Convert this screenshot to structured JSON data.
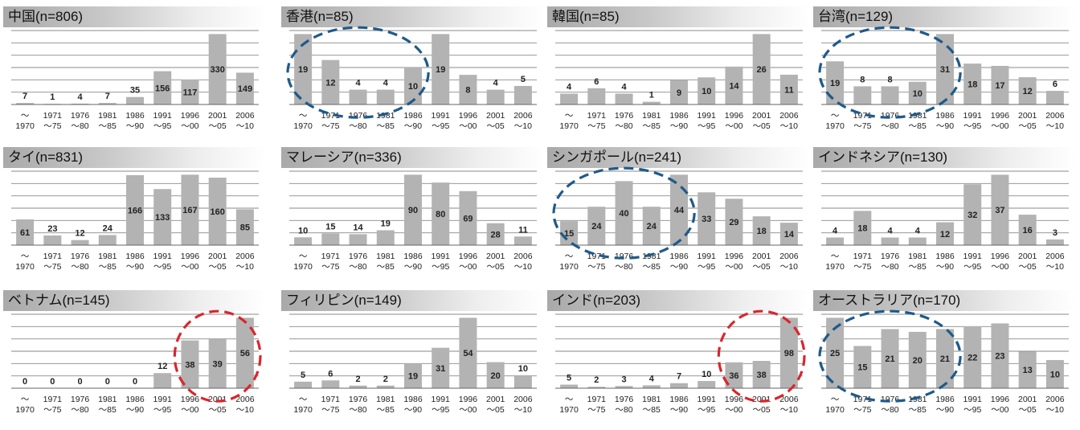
{
  "chart_data": [
    {
      "type": "bar",
      "title": "中国(n=806)",
      "categories": [
        [
          "～",
          "1970"
        ],
        [
          "1971",
          "～75"
        ],
        [
          "1976",
          "～80"
        ],
        [
          "1981",
          "～85"
        ],
        [
          "1986",
          "～90"
        ],
        [
          "1991",
          "～95"
        ],
        [
          "1996",
          "～00"
        ],
        [
          "2001",
          "～05"
        ],
        [
          "2006",
          "～10"
        ]
      ],
      "values": [
        7,
        1,
        4,
        7,
        35,
        156,
        117,
        330,
        149
      ],
      "highlight": null
    },
    {
      "type": "bar",
      "title": "香港(n=85)",
      "categories": [
        [
          "～",
          "1970"
        ],
        [
          "1971",
          "～75"
        ],
        [
          "1976",
          "～80"
        ],
        [
          "1981",
          "～85"
        ],
        [
          "1986",
          "～90"
        ],
        [
          "1991",
          "～95"
        ],
        [
          "1996",
          "～00"
        ],
        [
          "2001",
          "～05"
        ],
        [
          "2006",
          "～10"
        ]
      ],
      "values": [
        19,
        12,
        4,
        4,
        10,
        19,
        8,
        4,
        5
      ],
      "highlight": {
        "color": "#1f5a8a",
        "from": 0,
        "to": 4
      }
    },
    {
      "type": "bar",
      "title": "韓国(n=85)",
      "categories": [
        [
          "～",
          "1970"
        ],
        [
          "1971",
          "～75"
        ],
        [
          "1976",
          "～80"
        ],
        [
          "1981",
          "～85"
        ],
        [
          "1986",
          "～90"
        ],
        [
          "1991",
          "～95"
        ],
        [
          "1996",
          "～00"
        ],
        [
          "2001",
          "～05"
        ],
        [
          "2006",
          "～10"
        ]
      ],
      "values": [
        4,
        6,
        4,
        1,
        9,
        10,
        14,
        26,
        11
      ],
      "highlight": null
    },
    {
      "type": "bar",
      "title": "台湾(n=129)",
      "categories": [
        [
          "～",
          "1970"
        ],
        [
          "1971",
          "～75"
        ],
        [
          "1976",
          "～80"
        ],
        [
          "1981",
          "～85"
        ],
        [
          "1986",
          "～90"
        ],
        [
          "1991",
          "～95"
        ],
        [
          "1996",
          "～00"
        ],
        [
          "2001",
          "～05"
        ],
        [
          "2006",
          "～10"
        ]
      ],
      "values": [
        19,
        8,
        8,
        10,
        31,
        18,
        17,
        12,
        6
      ],
      "highlight": {
        "color": "#1f5a8a",
        "from": 0,
        "to": 4
      }
    },
    {
      "type": "bar",
      "title": "タイ(n=831)",
      "categories": [
        [
          "～",
          "1970"
        ],
        [
          "1971",
          "～75"
        ],
        [
          "1976",
          "～80"
        ],
        [
          "1981",
          "～85"
        ],
        [
          "1986",
          "～90"
        ],
        [
          "1991",
          "～95"
        ],
        [
          "1996",
          "～00"
        ],
        [
          "2001",
          "～05"
        ],
        [
          "2006",
          "～10"
        ]
      ],
      "values": [
        61,
        23,
        12,
        24,
        166,
        133,
        167,
        160,
        85
      ],
      "highlight": null
    },
    {
      "type": "bar",
      "title": "マレーシア(n=336)",
      "categories": [
        [
          "～",
          "1970"
        ],
        [
          "1971",
          "～75"
        ],
        [
          "1976",
          "～80"
        ],
        [
          "1981",
          "～85"
        ],
        [
          "1986",
          "～90"
        ],
        [
          "1991",
          "～95"
        ],
        [
          "1996",
          "～00"
        ],
        [
          "2001",
          "～05"
        ],
        [
          "2006",
          "～10"
        ]
      ],
      "values": [
        10,
        15,
        14,
        19,
        90,
        80,
        69,
        28,
        11
      ],
      "highlight": null
    },
    {
      "type": "bar",
      "title": "シンガポール(n=241)",
      "categories": [
        [
          "～",
          "1970"
        ],
        [
          "1971",
          "～75"
        ],
        [
          "1976",
          "～80"
        ],
        [
          "1981",
          "～85"
        ],
        [
          "1986",
          "～90"
        ],
        [
          "1991",
          "～95"
        ],
        [
          "1996",
          "～00"
        ],
        [
          "2001",
          "～05"
        ],
        [
          "2006",
          "～10"
        ]
      ],
      "values": [
        15,
        24,
        40,
        24,
        44,
        33,
        29,
        18,
        14
      ],
      "highlight": {
        "color": "#1f5a8a",
        "from": 0,
        "to": 4
      }
    },
    {
      "type": "bar",
      "title": "インドネシア(n=130)",
      "categories": [
        [
          "～",
          "1970"
        ],
        [
          "1971",
          "～75"
        ],
        [
          "1976",
          "～80"
        ],
        [
          "1981",
          "～85"
        ],
        [
          "1986",
          "～90"
        ],
        [
          "1991",
          "～95"
        ],
        [
          "1996",
          "～00"
        ],
        [
          "2001",
          "～05"
        ],
        [
          "2006",
          "～10"
        ]
      ],
      "values": [
        4,
        18,
        4,
        4,
        12,
        32,
        37,
        16,
        3
      ],
      "highlight": null
    },
    {
      "type": "bar",
      "title": "ベトナム(n=145)",
      "categories": [
        [
          "～",
          "1970"
        ],
        [
          "1971",
          "～75"
        ],
        [
          "1976",
          "～80"
        ],
        [
          "1981",
          "～85"
        ],
        [
          "1986",
          "～90"
        ],
        [
          "1991",
          "～95"
        ],
        [
          "1996",
          "～00"
        ],
        [
          "2001",
          "～05"
        ],
        [
          "2006",
          "～10"
        ]
      ],
      "values": [
        0,
        0,
        0,
        0,
        0,
        12,
        38,
        39,
        56
      ],
      "highlight": {
        "color": "#d9262c",
        "from": 6,
        "to": 8
      }
    },
    {
      "type": "bar",
      "title": "フィリピン(n=149)",
      "categories": [
        [
          "～",
          "1970"
        ],
        [
          "1971",
          "～75"
        ],
        [
          "1976",
          "～80"
        ],
        [
          "1981",
          "～85"
        ],
        [
          "1986",
          "～90"
        ],
        [
          "1991",
          "～95"
        ],
        [
          "1996",
          "～00"
        ],
        [
          "2001",
          "～05"
        ],
        [
          "2006",
          "～10"
        ]
      ],
      "values": [
        5,
        6,
        2,
        2,
        19,
        31,
        54,
        20,
        10
      ],
      "highlight": null
    },
    {
      "type": "bar",
      "title": "インド(n=203)",
      "categories": [
        [
          "～",
          "1970"
        ],
        [
          "1971",
          "～75"
        ],
        [
          "1976",
          "～80"
        ],
        [
          "1981",
          "～85"
        ],
        [
          "1986",
          "～90"
        ],
        [
          "1991",
          "～95"
        ],
        [
          "1996",
          "～00"
        ],
        [
          "2001",
          "～05"
        ],
        [
          "2006",
          "～10"
        ]
      ],
      "values": [
        5,
        2,
        3,
        4,
        7,
        10,
        36,
        38,
        98
      ],
      "highlight": {
        "color": "#d9262c",
        "from": 6,
        "to": 8
      }
    },
    {
      "type": "bar",
      "title": "オーストラリア(n=170)",
      "categories": [
        [
          "～",
          "1970"
        ],
        [
          "1971",
          "～75"
        ],
        [
          "1976",
          "～80"
        ],
        [
          "1981",
          "～85"
        ],
        [
          "1986",
          "～90"
        ],
        [
          "1991",
          "～95"
        ],
        [
          "1996",
          "～00"
        ],
        [
          "2001",
          "～05"
        ],
        [
          "2006",
          "～10"
        ]
      ],
      "values": [
        25,
        15,
        21,
        20,
        21,
        22,
        23,
        13,
        10
      ],
      "highlight": {
        "color": "#1f5a8a",
        "from": 0,
        "to": 4
      }
    }
  ]
}
